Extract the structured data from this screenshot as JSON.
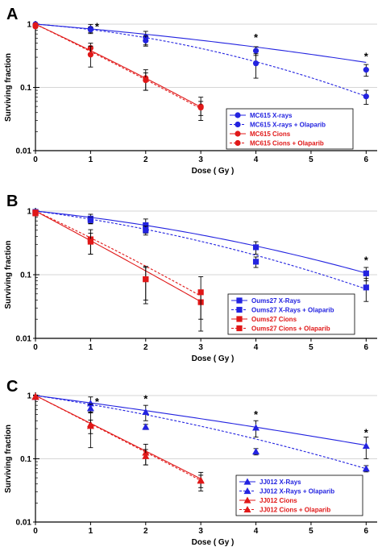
{
  "colors": {
    "blue": "#2323e0",
    "red": "#e01818",
    "grid": "#c8c8c8"
  },
  "chart_data": [
    {
      "type": "line",
      "panel": "A",
      "xlabel": "Dose ( Gy )",
      "ylabel": "Surviving fraction",
      "xlim": [
        0,
        6.2
      ],
      "ylim": [
        0.01,
        1
      ],
      "y_scale": "log",
      "x_ticks": [
        "0",
        "1",
        "2",
        "3",
        "4",
        "5",
        "6"
      ],
      "y_ticks": [
        "1",
        "0.1",
        "0.01"
      ],
      "marker": "circle",
      "legend_position": "bottom-right",
      "series": [
        {
          "name": "MC615 X-rays",
          "color": "blue",
          "dash": false,
          "x": [
            0,
            1,
            2,
            4,
            6
          ],
          "y": [
            1,
            0.85,
            0.62,
            0.38,
            0.19
          ],
          "err": [
            0.05,
            0.14,
            0.15,
            0.06,
            0.04
          ],
          "fit": [
            0,
            0.16,
            0.012
          ]
        },
        {
          "name": "MC615 X-rays + Olaparib",
          "color": "blue",
          "dash": true,
          "x": [
            0,
            1,
            2,
            4,
            6
          ],
          "y": [
            0.97,
            0.82,
            0.55,
            0.24,
            0.072
          ],
          "err": [
            0.05,
            0.08,
            0.1,
            0.1,
            0.018
          ],
          "fit": [
            0,
            0.15,
            0.048
          ]
        },
        {
          "name": "MC615 Cions",
          "color": "red",
          "dash": false,
          "x": [
            0,
            1,
            2,
            3
          ],
          "y": [
            0.92,
            0.42,
            0.14,
            0.05
          ],
          "err": [
            0.05,
            0.08,
            0.05,
            0.02
          ],
          "fit": [
            0,
            0.94,
            0.022
          ]
        },
        {
          "name": "MC615 Cions + Olaparib",
          "color": "red",
          "dash": true,
          "x": [
            0,
            1,
            2,
            3
          ],
          "y": [
            0.97,
            0.33,
            0.13,
            0.048
          ],
          "err": [
            0.05,
            0.12,
            0.04,
            0.012
          ],
          "fit": [
            0,
            0.98,
            0.015
          ]
        }
      ],
      "annotations": [
        {
          "text": "*",
          "x": 1,
          "y": 0.85
        },
        {
          "text": "*",
          "x": 4,
          "y": 0.38
        },
        {
          "text": "*",
          "x": 6,
          "y": 0.19
        }
      ]
    },
    {
      "type": "line",
      "panel": "B",
      "xlabel": "Dose ( Gy )",
      "ylabel": "Surviving fraction",
      "xlim": [
        0,
        6.2
      ],
      "ylim": [
        0.01,
        1
      ],
      "y_scale": "log",
      "x_ticks": [
        "0",
        "1",
        "2",
        "3",
        "4",
        "5",
        "6"
      ],
      "y_ticks": [
        "1",
        "0.1",
        "0.01"
      ],
      "marker": "square",
      "legend_position": "bottom-right",
      "series": [
        {
          "name": "Oums27 X-Rays",
          "color": "blue",
          "dash": false,
          "x": [
            0,
            1,
            2,
            4,
            6
          ],
          "y": [
            0.97,
            0.76,
            0.6,
            0.27,
            0.105
          ],
          "err": [
            0.06,
            0.13,
            0.15,
            0.06,
            0.025
          ],
          "fit": [
            0,
            0.2,
            0.029
          ]
        },
        {
          "name": "Oums27 X-Rays + Olaparib",
          "color": "blue",
          "dash": true,
          "x": [
            0,
            1,
            2,
            4,
            6
          ],
          "y": [
            0.93,
            0.72,
            0.5,
            0.16,
            0.063
          ],
          "err": [
            0.05,
            0.08,
            0.08,
            0.03,
            0.025
          ],
          "fit": [
            0,
            0.26,
            0.035
          ]
        },
        {
          "name": "Oums27 Cions",
          "color": "red",
          "dash": false,
          "x": [
            0,
            1,
            2,
            3
          ],
          "y": [
            0.92,
            0.36,
            0.085,
            0.037
          ],
          "err": [
            0.05,
            0.15,
            0.045,
            0.017
          ],
          "fit": [
            0,
            1.06,
            0.011
          ]
        },
        {
          "name": "Oums27 Cions + Olaparib",
          "color": "red",
          "dash": true,
          "x": [
            0,
            1,
            2,
            3
          ],
          "y": [
            0.95,
            0.33,
            0.085,
            0.053
          ],
          "err": [
            0.05,
            0.12,
            0.05,
            0.04
          ],
          "fit": [
            0,
            0.94,
            0.028
          ]
        }
      ],
      "annotations": [
        {
          "text": "*",
          "x": 6,
          "y": 0.105
        }
      ]
    },
    {
      "type": "line",
      "panel": "C",
      "xlabel": "Dose ( Gy )",
      "ylabel": "Surviving fraction",
      "xlim": [
        0,
        6.2
      ],
      "ylim": [
        0.01,
        1
      ],
      "y_scale": "log",
      "x_ticks": [
        "0",
        "1",
        "2",
        "3",
        "4",
        "5",
        "6"
      ],
      "y_ticks": [
        "1",
        "0.1",
        "0.01"
      ],
      "marker": "triangle",
      "legend_position": "bottom-right",
      "series": [
        {
          "name": "JJ012 X-Rays",
          "color": "blue",
          "dash": false,
          "x": [
            0,
            1,
            2,
            4,
            6
          ],
          "y": [
            0.95,
            0.75,
            0.55,
            0.31,
            0.16
          ],
          "err": [
            0.05,
            0.2,
            0.15,
            0.09,
            0.06
          ],
          "fit": [
            0,
            0.26,
            0.007
          ]
        },
        {
          "name": "JJ012 X-Rays + Olaparib",
          "color": "blue",
          "dash": true,
          "x": [
            0,
            1,
            2,
            4,
            6
          ],
          "y": [
            0.95,
            0.63,
            0.32,
            0.13,
            0.07
          ],
          "err": [
            0.05,
            0.1,
            0.03,
            0.015,
            0.008
          ],
          "fit": [
            0,
            0.3,
            0.024
          ]
        },
        {
          "name": "JJ012 Cions",
          "color": "red",
          "dash": false,
          "x": [
            0,
            1,
            2,
            3
          ],
          "y": [
            0.95,
            0.35,
            0.125,
            0.046
          ],
          "err": [
            0.05,
            0.2,
            0.045,
            0.015
          ],
          "fit": [
            0,
            1.01,
            0.0
          ]
        },
        {
          "name": "JJ012 Cions  + Olaparib",
          "color": "red",
          "dash": true,
          "x": [
            0,
            1,
            2,
            3
          ],
          "y": [
            0.97,
            0.33,
            0.11,
            0.045
          ],
          "err": [
            0.05,
            0.08,
            0.03,
            0.01
          ],
          "fit": [
            0,
            1.03,
            0.0
          ]
        }
      ],
      "annotations": [
        {
          "text": "*",
          "x": 1,
          "y": 0.75
        },
        {
          "text": "*",
          "x": 2,
          "y": 0.55
        },
        {
          "text": "*",
          "x": 4,
          "y": 0.31
        },
        {
          "text": "*",
          "x": 6,
          "y": 0.16
        }
      ]
    }
  ]
}
